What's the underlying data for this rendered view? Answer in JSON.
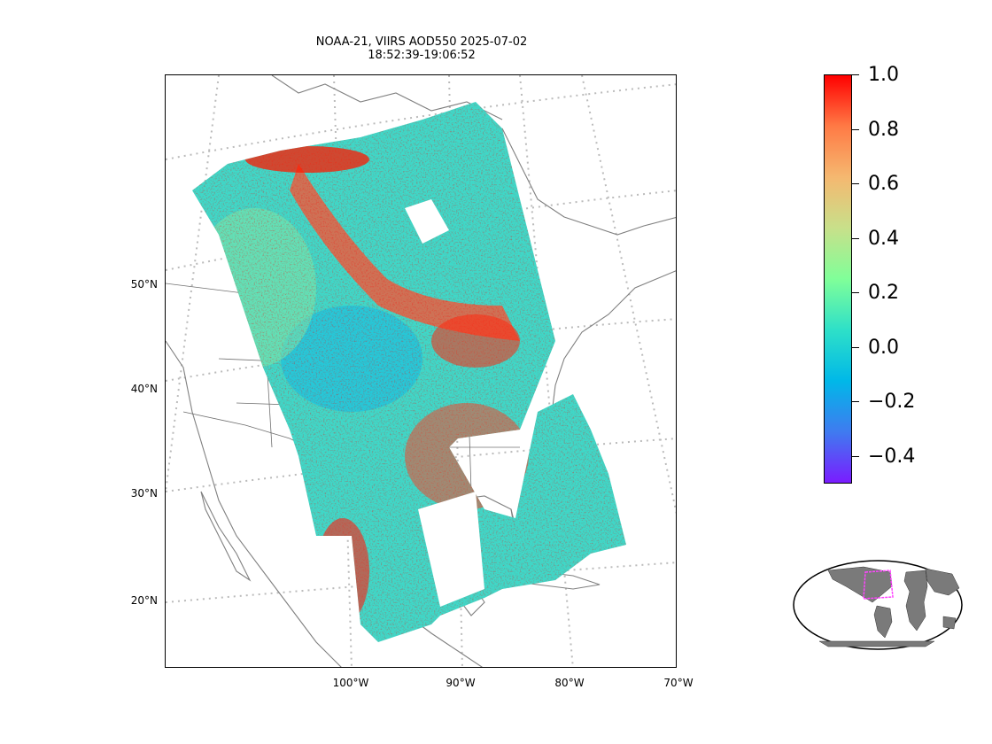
{
  "title": {
    "line1": "NOAA-21, VIIRS AOD550 2025-07-02",
    "line2": "18:52:39-19:06:52"
  },
  "lat_labels": [
    "50°N",
    "40°N",
    "30°N",
    "20°N"
  ],
  "lon_labels": [
    "100°W",
    "90°W",
    "80°W",
    "70°W"
  ],
  "colorbar": {
    "colormap": "rainbow",
    "range": [
      -0.5,
      1.0
    ],
    "ticks": [
      "1.0",
      "0.8",
      "0.6",
      "0.4",
      "0.2",
      "0.0",
      "−0.2",
      "−0.4"
    ],
    "colors": [
      "#ff0000",
      "#ff7a45",
      "#f5b870",
      "#c8e08a",
      "#80ff99",
      "#2ee0c8",
      "#00b8e8",
      "#3f7bf0",
      "#7a1cff"
    ]
  },
  "map": {
    "projection": "conic",
    "graticule": "dotted",
    "land_outline_color": "#808080",
    "state_border_color": "#707070",
    "high_aod_color": "#ff0000",
    "background_aod_color": "#3fd8c8"
  },
  "inset": {
    "globe_land_color": "#7a7a7a",
    "region_box_color": "#ff44ff"
  }
}
